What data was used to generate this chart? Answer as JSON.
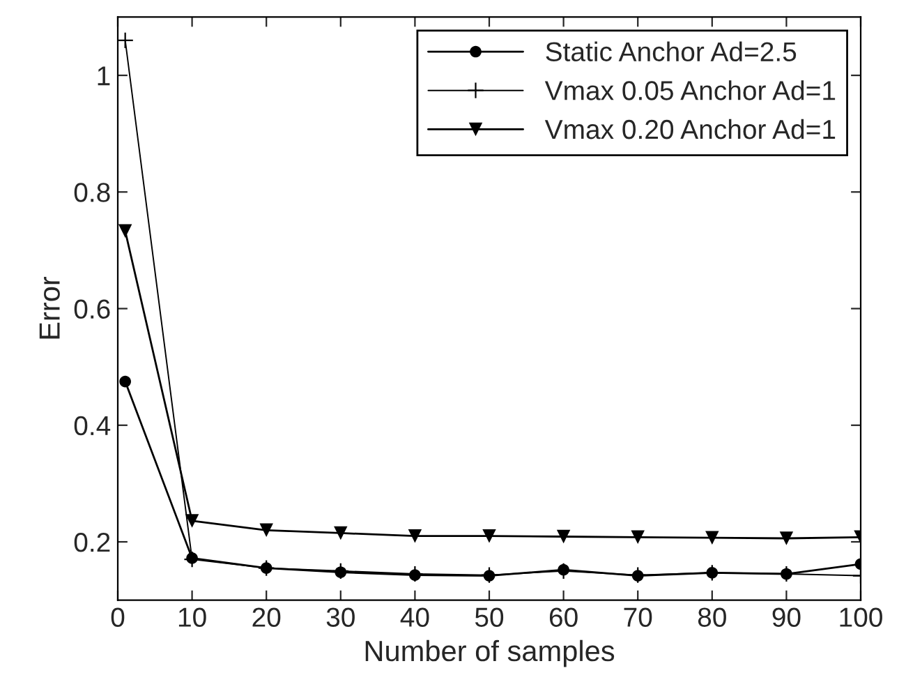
{
  "chart_data": {
    "type": "line",
    "xlabel": "Number of samples",
    "ylabel": "Error",
    "x": [
      1,
      10,
      20,
      30,
      40,
      50,
      60,
      70,
      80,
      90,
      100
    ],
    "series": [
      {
        "name": "Static Anchor Ad=2.5",
        "color": "#000000",
        "marker": "circle",
        "values": [
          0.475,
          0.172,
          0.155,
          0.148,
          0.143,
          0.142,
          0.152,
          0.142,
          0.147,
          0.145,
          0.162
        ]
      },
      {
        "name": "Vmax 0.05 Anchor Ad=1",
        "color": "#000000",
        "marker": "cross",
        "values": [
          1.06,
          0.17,
          0.155,
          0.15,
          0.145,
          0.143,
          0.15,
          0.143,
          0.147,
          0.145,
          0.142
        ]
      },
      {
        "name": "Vmax 0.20 Anchor Ad=1",
        "color": "#000000",
        "marker": "triangle",
        "values": [
          0.733,
          0.236,
          0.22,
          0.215,
          0.21,
          0.21,
          0.209,
          0.208,
          0.207,
          0.206,
          0.208
        ]
      }
    ],
    "xlim": [
      0,
      100
    ],
    "ylim": [
      0.1,
      1.1
    ],
    "xticks": [
      0,
      10,
      20,
      30,
      40,
      50,
      60,
      70,
      80,
      90,
      100
    ],
    "yticks": [
      0.2,
      0.4,
      0.6,
      0.8,
      1
    ],
    "grid": false,
    "legend": "top right",
    "line_style": "solid"
  }
}
